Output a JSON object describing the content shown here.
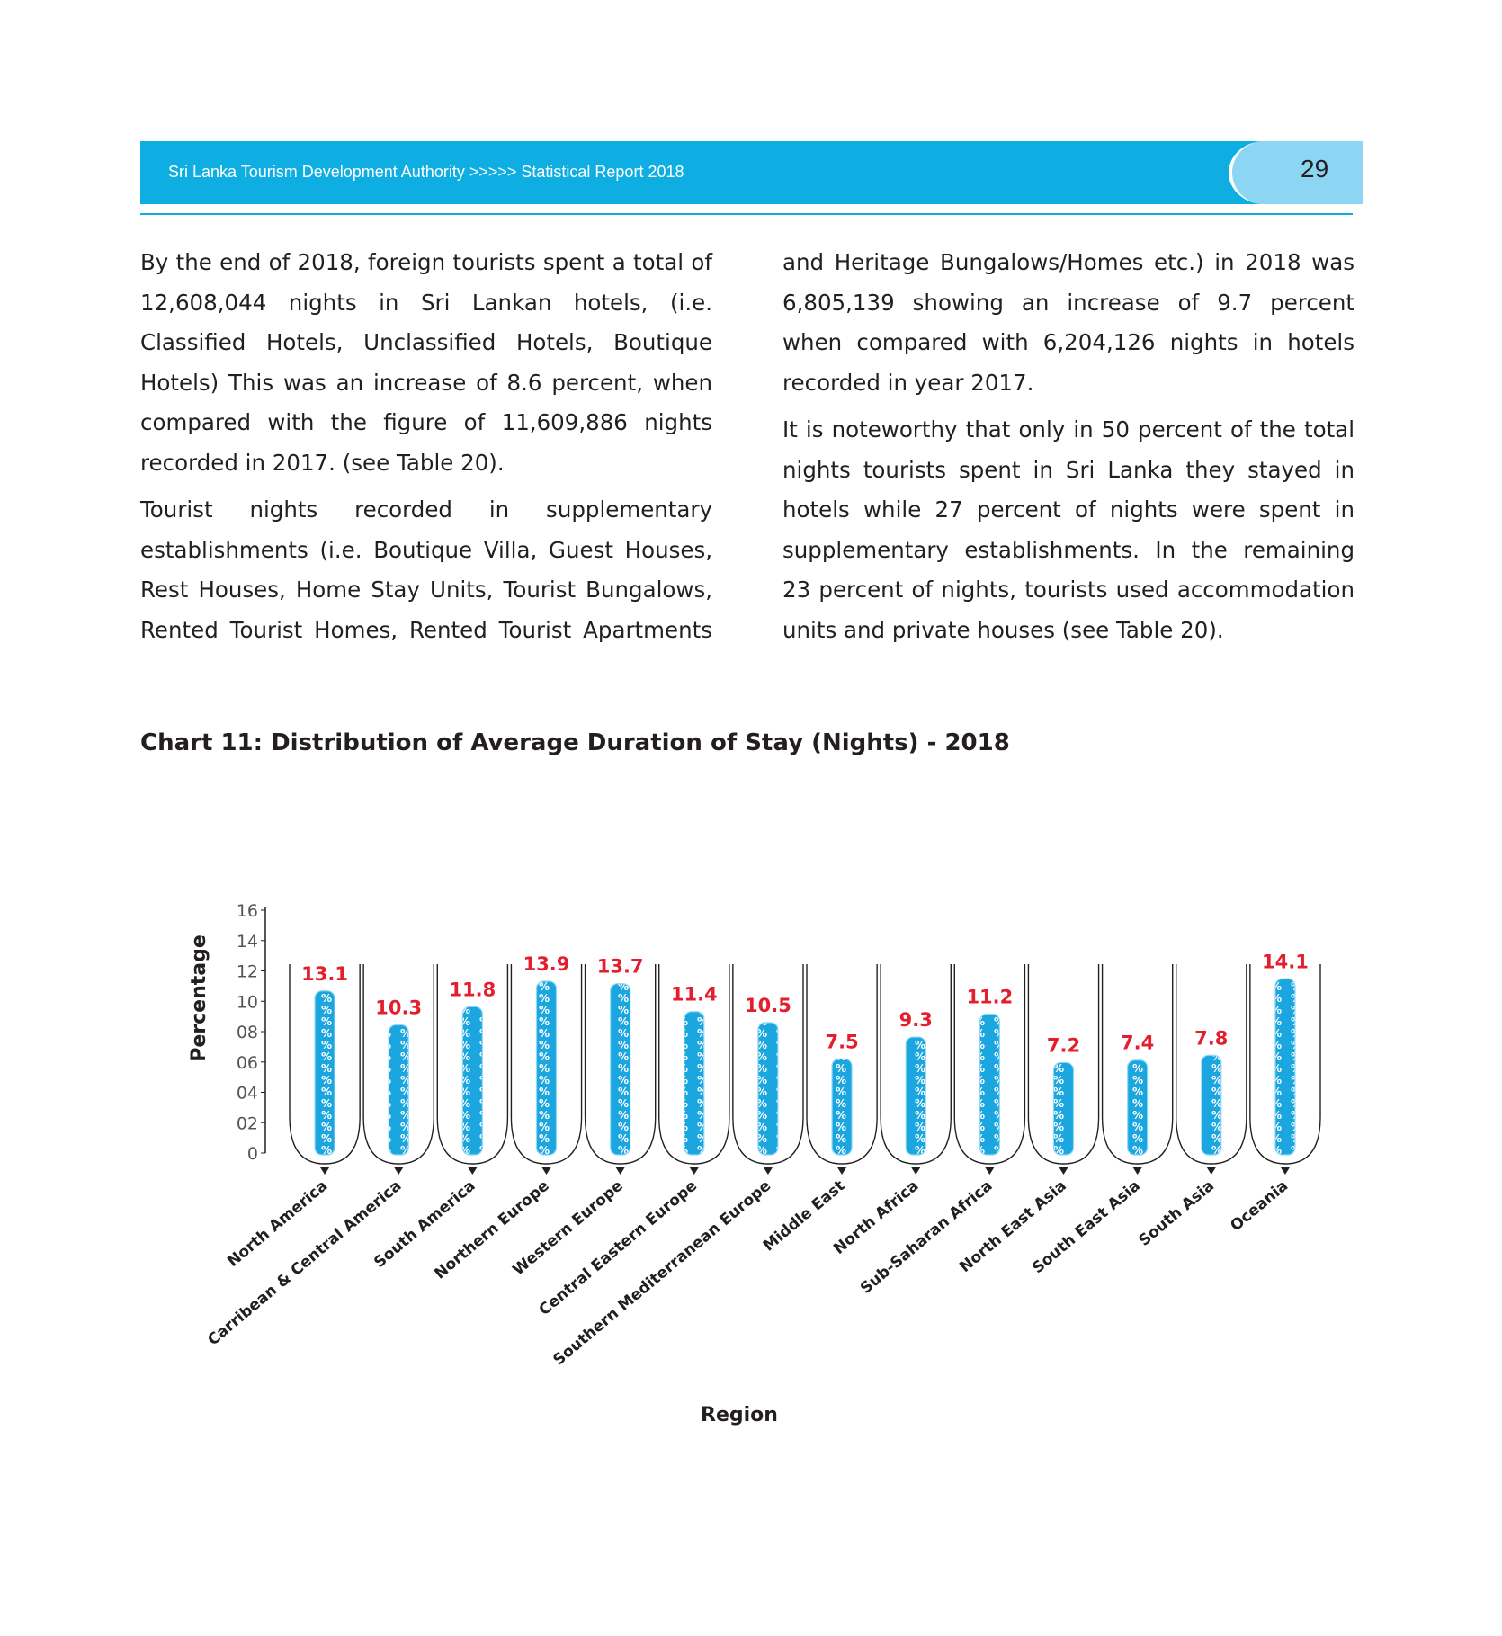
{
  "header": {
    "title": "Sri Lanka Tourism Development Authority >>>>> Statistical Report 2018",
    "page_number": "29"
  },
  "body": {
    "left_paragraphs": [
      "By the end of 2018, foreign tourists spent a total of 12,608,044 nights in Sri Lankan hotels, (i.e. Classified Hotels, Unclassified Hotels, Boutique Hotels) This was an increase of 8.6 percent, when compared with the figure of 11,609,886 nights recorded in 2017. (see Table 20).",
      "Tourist nights recorded in supplementary establishments (i.e. Boutique Villa, Guest Houses, Rest Houses, Home Stay Units, Tourist Bungalows, Rented Tourist Homes, Rented Tourist Apartments"
    ],
    "right_paragraphs": [
      "and Heritage Bungalows/Homes etc.) in 2018 was 6,805,139 showing an increase of 9.7 percent when compared with 6,204,126 nights in hotels recorded in year 2017.",
      "It is noteworthy that only in 50 percent of the total nights tourists spent in Sri Lanka they stayed in hotels while 27 percent of nights were spent in supplementary establishments. In the remaining 23 percent of nights, tourists used accommodation units and private houses (see Table 20)."
    ]
  },
  "chart_title": "Chart 11: Distribution of Average Duration of Stay (Nights) - 2018",
  "chart_data": {
    "type": "bar",
    "title": "Chart 11: Distribution of Average Duration of Stay (Nights) - 2018",
    "xlabel": "Region",
    "ylabel": "Percentage",
    "ylim": [
      0,
      16
    ],
    "yticks": [
      "0",
      "02",
      "04",
      "06",
      "08",
      "10",
      "12",
      "14",
      "16"
    ],
    "categories": [
      "North America",
      "Carribean & Central America",
      "South America",
      "Northern Europe",
      "Western Europe",
      "Central Eastern Europe",
      "Southern Mediterranean Europe",
      "Middle East",
      "North Africa",
      "Sub-Saharan Africa",
      "North East Asia",
      "South East Asia",
      "South Asia",
      "Oceania"
    ],
    "values": [
      13.1,
      10.3,
      11.8,
      13.9,
      13.7,
      11.4,
      10.5,
      7.5,
      9.3,
      11.2,
      7.2,
      7.4,
      7.8,
      14.1
    ],
    "labels": [
      "13.1",
      "10.3",
      "11.8",
      "13.9",
      "13.7",
      "11.4",
      "10.5",
      "7.5",
      "9.3",
      "11.2",
      "7.2",
      "7.4",
      "7.8",
      "14.1"
    ],
    "bar_color": "#1ba6df",
    "label_color": "#e31e2d"
  }
}
